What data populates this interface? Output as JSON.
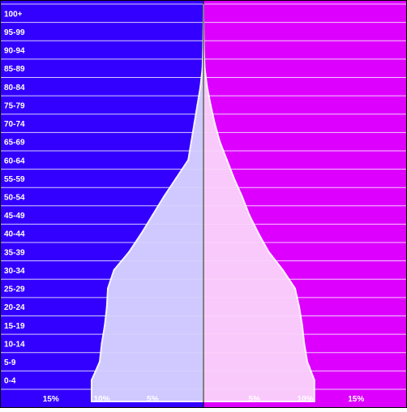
{
  "chart_data": {
    "type": "area",
    "orientation": "population-pyramid",
    "categories": [
      "0-4",
      "5-9",
      "10-14",
      "15-19",
      "20-24",
      "25-29",
      "30-34",
      "35-39",
      "40-44",
      "45-49",
      "50-54",
      "55-59",
      "60-64",
      "65-69",
      "70-74",
      "75-79",
      "80-84",
      "85-89",
      "90-94",
      "95-99",
      "100+"
    ],
    "series": [
      {
        "side": "left",
        "values": [
          11.0,
          10.2,
          10.0,
          9.7,
          9.5,
          9.4,
          8.8,
          7.3,
          6.1,
          5.0,
          3.9,
          2.7,
          1.5,
          1.2,
          0.9,
          0.6,
          0.3,
          0.1,
          0.05,
          0.02,
          0.0
        ]
      },
      {
        "side": "right",
        "values": [
          10.9,
          10.2,
          9.9,
          9.7,
          9.4,
          9.0,
          7.8,
          6.4,
          5.4,
          4.5,
          3.8,
          3.0,
          2.3,
          1.6,
          1.1,
          0.7,
          0.35,
          0.12,
          0.05,
          0.02,
          0.0
        ]
      }
    ],
    "xlim": [
      -20,
      20
    ],
    "x_ticks": [
      {
        "value": -15,
        "label": "15%"
      },
      {
        "value": -10,
        "label": "10%"
      },
      {
        "value": -5,
        "label": "5%"
      },
      {
        "value": 5,
        "label": "5%"
      },
      {
        "value": 10,
        "label": "10%"
      },
      {
        "value": 15,
        "label": "15%"
      }
    ],
    "grid": true,
    "legend": "none",
    "title": "",
    "xlabel": "",
    "ylabel": "",
    "colors": {
      "left_background": "#3300ff",
      "right_background": "#dd00ff",
      "left_fill": "#d8d4ff",
      "right_fill": "#fbd4fb",
      "outline": "#ffffff",
      "gridline": "#ffffff",
      "center_line": "#000000",
      "label_text": "#ffffff"
    }
  }
}
